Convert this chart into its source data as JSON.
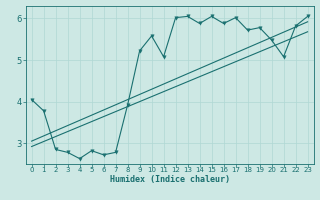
{
  "title": "",
  "xlabel": "Humidex (Indice chaleur)",
  "xlim": [
    -0.5,
    23.5
  ],
  "ylim": [
    2.5,
    6.3
  ],
  "yticks": [
    3,
    4,
    5,
    6
  ],
  "xticks": [
    0,
    1,
    2,
    3,
    4,
    5,
    6,
    7,
    8,
    9,
    10,
    11,
    12,
    13,
    14,
    15,
    16,
    17,
    18,
    19,
    20,
    21,
    22,
    23
  ],
  "bg_color": "#cde8e4",
  "line_color": "#1a7070",
  "grid_color": "#b0d8d4",
  "main_line": [
    [
      0,
      4.05
    ],
    [
      1,
      3.78
    ],
    [
      2,
      2.85
    ],
    [
      3,
      2.78
    ],
    [
      4,
      2.63
    ],
    [
      5,
      2.82
    ],
    [
      6,
      2.72
    ],
    [
      7,
      2.78
    ],
    [
      8,
      3.92
    ],
    [
      9,
      5.22
    ],
    [
      10,
      5.58
    ],
    [
      11,
      5.08
    ],
    [
      12,
      6.02
    ],
    [
      13,
      6.05
    ],
    [
      14,
      5.88
    ],
    [
      15,
      6.05
    ],
    [
      16,
      5.88
    ],
    [
      17,
      6.02
    ],
    [
      18,
      5.72
    ],
    [
      19,
      5.78
    ],
    [
      20,
      5.48
    ],
    [
      21,
      5.08
    ],
    [
      22,
      5.82
    ],
    [
      23,
      6.05
    ]
  ],
  "reg_line1": [
    [
      0,
      3.05
    ],
    [
      23,
      5.92
    ]
  ],
  "reg_line2": [
    [
      0,
      2.92
    ],
    [
      23,
      5.68
    ]
  ],
  "marker_size": 2.5,
  "linewidth": 0.8,
  "xlabel_fontsize": 6,
  "tick_fontsize_x": 5,
  "tick_fontsize_y": 6
}
